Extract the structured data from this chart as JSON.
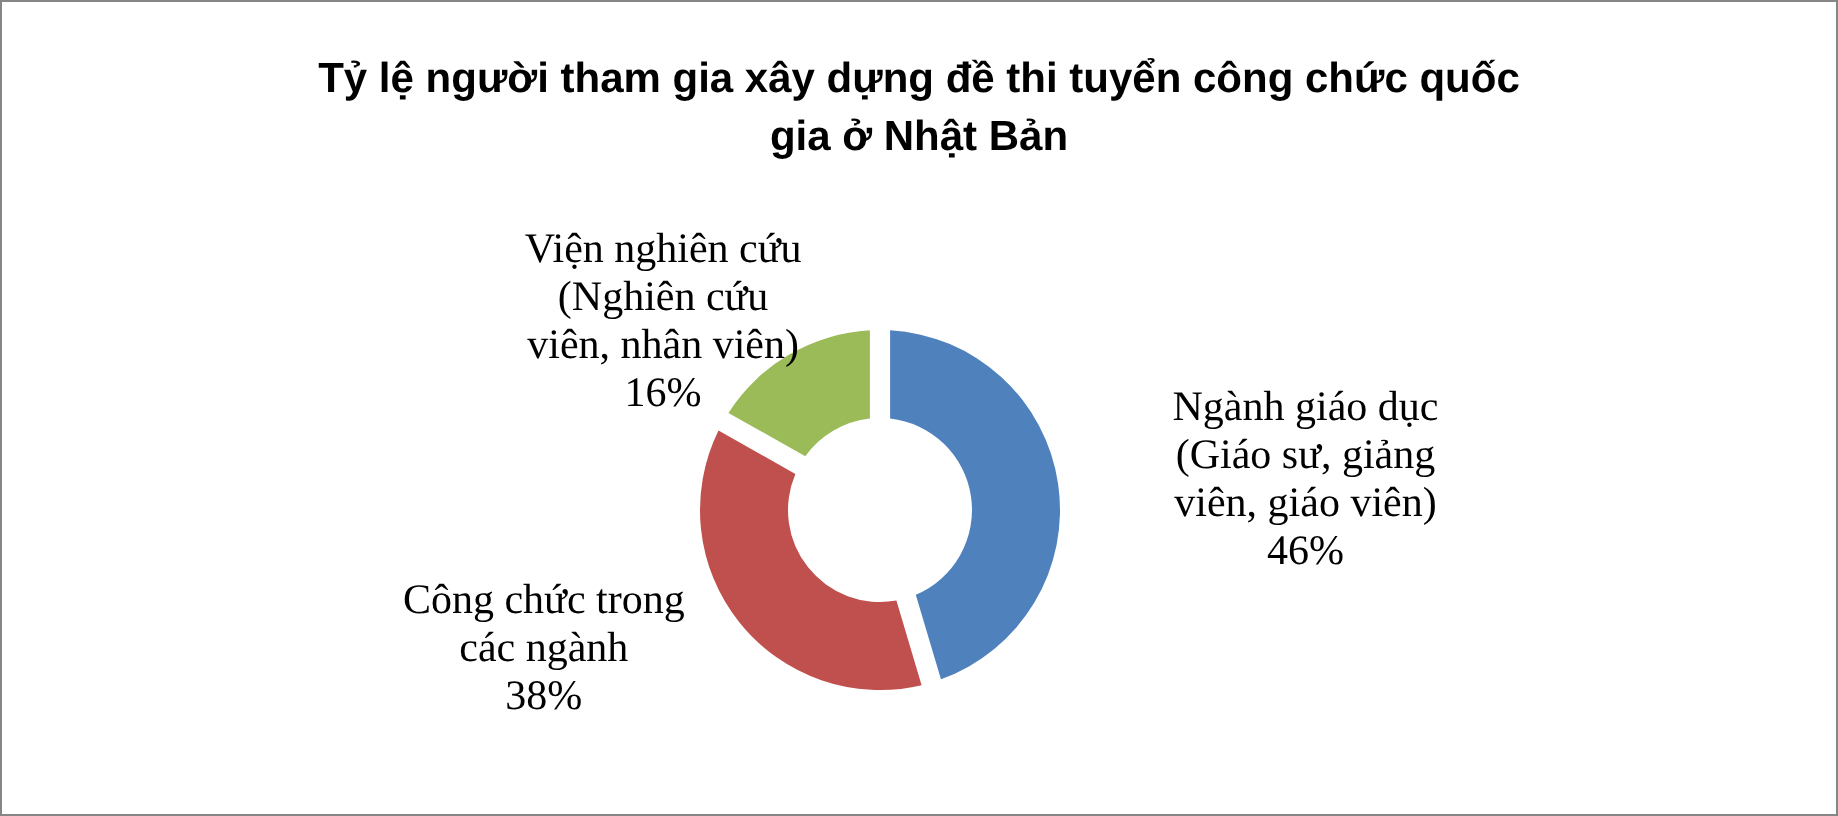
{
  "chart_data": {
    "type": "donut",
    "title": "Tỷ lệ người tham gia xây dựng đề thi tuyển công chức quốc gia ở Nhật Bản",
    "categories": [
      "Ngành giáo dục (Giáo sư, giảng viên, giáo viên)",
      "Công chức trong các ngành",
      "Viện nghiên cứu (Nghiên cứu viên, nhân viên)"
    ],
    "values": [
      46,
      38,
      16
    ],
    "value_labels": [
      "46%",
      "38%",
      "16%"
    ],
    "colors": [
      "#4f81bd",
      "#c0504d",
      "#9bbb59"
    ]
  }
}
